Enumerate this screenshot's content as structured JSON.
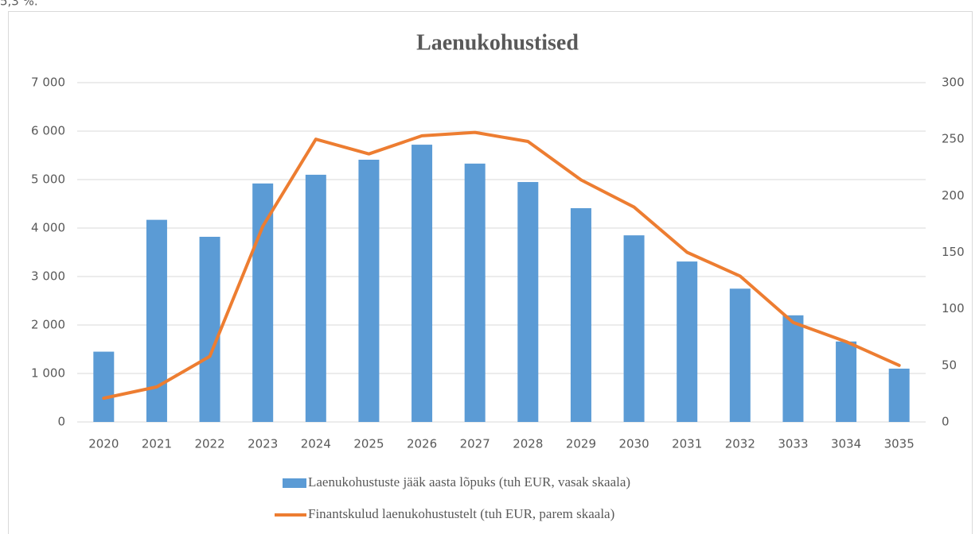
{
  "clipped_text": "5,3 %.",
  "chart_data": {
    "type": "bar_line",
    "title": "Laenukohustised",
    "categories": [
      "2020",
      "2021",
      "2022",
      "2023",
      "2024",
      "2025",
      "2026",
      "2027",
      "2028",
      "2029",
      "2030",
      "2031",
      "2032",
      "3033",
      "3034",
      "3035"
    ],
    "series": [
      {
        "name": "Laenukohustuste jääk aasta lõpuks (tuh EUR, vasak skaala)",
        "type": "bar",
        "color": "#5b9bd5",
        "values": [
          1450,
          4170,
          3820,
          4920,
          5100,
          5410,
          5720,
          5330,
          4950,
          4410,
          3850,
          3310,
          2750,
          2200,
          1660,
          1100
        ]
      },
      {
        "name": "Finantskulud laenukohustustelt (tuh EUR, parem skaala)",
        "type": "line",
        "axis": "y2",
        "color": "#ed7d31",
        "values": [
          21,
          31,
          58,
          173,
          250,
          237,
          253,
          256,
          248,
          214,
          190,
          150,
          129,
          88,
          71,
          50
        ]
      }
    ],
    "ylim": [
      0,
      7000
    ],
    "yticks": [
      0,
      {
        "value": 1000,
        "label": "1 000"
      },
      {
        "value": 2000,
        "label": "2 000"
      },
      {
        "value": 3000,
        "label": "3 000"
      },
      {
        "value": 4000,
        "label": "4 000"
      },
      {
        "value": 5000,
        "label": "5 000"
      },
      {
        "value": 6000,
        "label": "6 000"
      },
      {
        "value": 7000,
        "label": "7 000"
      }
    ],
    "y2lim": [
      0,
      300
    ],
    "y2ticks": [
      0,
      50,
      100,
      150,
      200,
      250,
      300
    ],
    "grid": true,
    "legend": "bottom"
  }
}
